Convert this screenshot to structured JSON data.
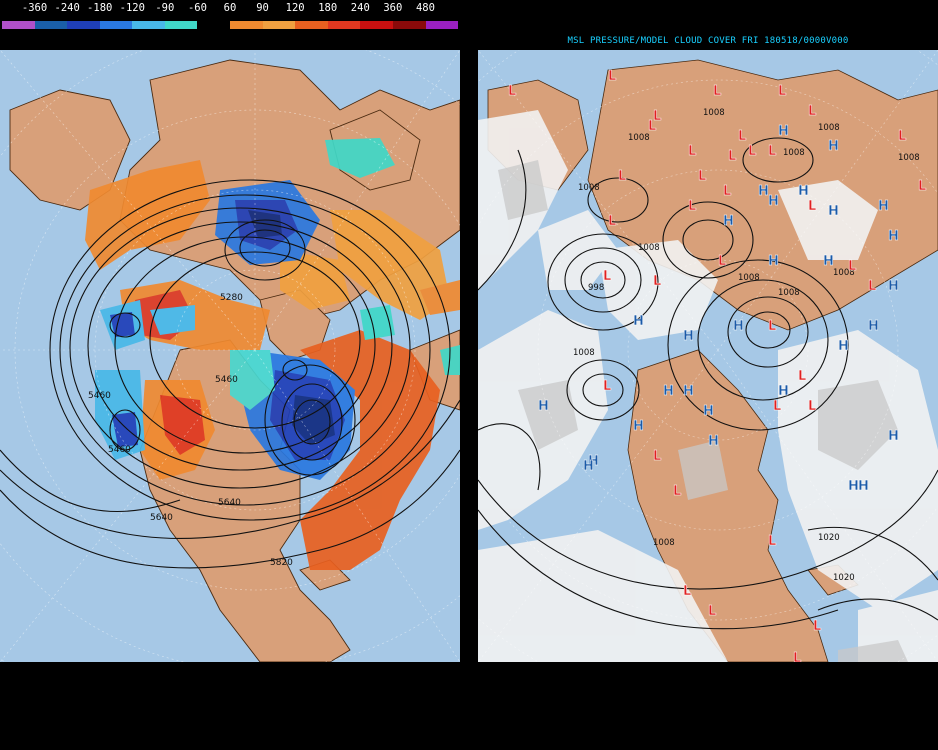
{
  "left_panel": {
    "colorbar": {
      "labels": [
        "-360",
        "-240",
        "-180",
        "-120",
        "-90",
        "-60",
        "60",
        "90",
        "120",
        "180",
        "240",
        "360",
        "480"
      ],
      "colors": [
        "#b050c8",
        "#1a5fa8",
        "#1f3fb8",
        "#2a78e0",
        "#48b8e8",
        "#40d8c8",
        "#000000",
        "#f08a30",
        "#f0a040",
        "#e86020",
        "#e03820",
        "#c81010",
        "#8a0a0a",
        "#9a20c0"
      ]
    },
    "contour_labels": [
      "5280",
      "5460",
      "5460",
      "5460",
      "5640",
      "5640",
      "5820"
    ]
  },
  "right_panel": {
    "title": "MSL PRESSURE/MODEL CLOUD COVER FRI 180518/0000V000",
    "pressure_labels": [
      "1008",
      "1008",
      "1008",
      "1008",
      "1008",
      "1008",
      "1008",
      "1008",
      "1008",
      "1008",
      "1008",
      "1008",
      "1020",
      "1020",
      "998"
    ],
    "low_symbol": "L",
    "high_symbol": "H",
    "colors": {
      "low": "#e02020",
      "high": "#1a5aa8",
      "title": "#19d0ff",
      "ocean": "#a6c8e6",
      "land": "#d8a07a",
      "cloud": "#f2f2f2"
    }
  }
}
